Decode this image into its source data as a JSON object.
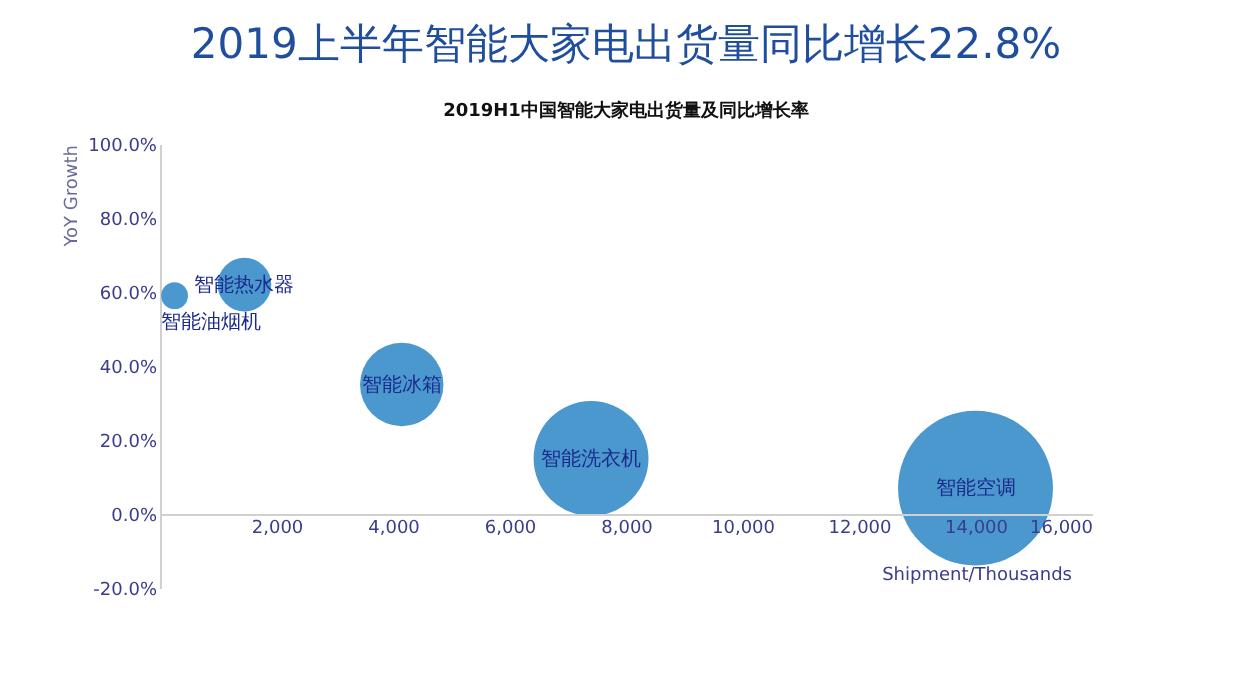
{
  "chart_data": {
    "type": "bubble",
    "title": "2019上半年智能大家电出货量同比增长22.8%",
    "subtitle": "2019H1中国智能大家电出货量及同比增长率",
    "xlabel": "Shipment/Thousands",
    "ylabel": "YoY Growth",
    "series": [
      {
        "color": "#4a98cd",
        "x": [
          250,
          1450,
          4150,
          7400,
          14000
        ],
        "values": [
          59,
          62,
          35,
          15,
          7
        ],
        "sizes": [
          0.03,
          0.12,
          0.29,
          0.55,
          1
        ]
      }
    ],
    "annotations": [
      {
        "text": "智能油烟机",
        "x": 250,
        "y": 59
      },
      {
        "text": "智能热水器",
        "x": 1450,
        "y": 62
      },
      {
        "text": "智能冰箱",
        "x": 4150,
        "y": 35
      },
      {
        "text": "智能洗衣机",
        "x": 7400,
        "y": 15
      },
      {
        "text": "智能空调",
        "x": 14000,
        "y": 7
      }
    ],
    "xlim": [
      0,
      16000
    ],
    "xticks": [
      {
        "value": 2000,
        "label": "2,000"
      },
      {
        "value": 4000,
        "label": "4,000"
      },
      {
        "value": 6000,
        "label": "6,000"
      },
      {
        "value": 8000,
        "label": "8,000"
      },
      {
        "value": 10000,
        "label": "10,000"
      },
      {
        "value": 12000,
        "label": "12,000"
      },
      {
        "value": 14000,
        "label": "14,000"
      },
      {
        "value": 16000,
        "label": "16,000"
      }
    ],
    "ylim": [
      -20,
      100
    ],
    "yticks": [
      {
        "value": -20,
        "label": "-20.0%"
      },
      {
        "value": 0,
        "label": "0.0%"
      },
      {
        "value": 20,
        "label": "20.0%"
      },
      {
        "value": 40,
        "label": "40.0%"
      },
      {
        "value": 60,
        "label": "60.0%"
      },
      {
        "value": 80,
        "label": "80.0%"
      },
      {
        "value": 100,
        "label": "100.0%"
      }
    ],
    "grid": false
  }
}
